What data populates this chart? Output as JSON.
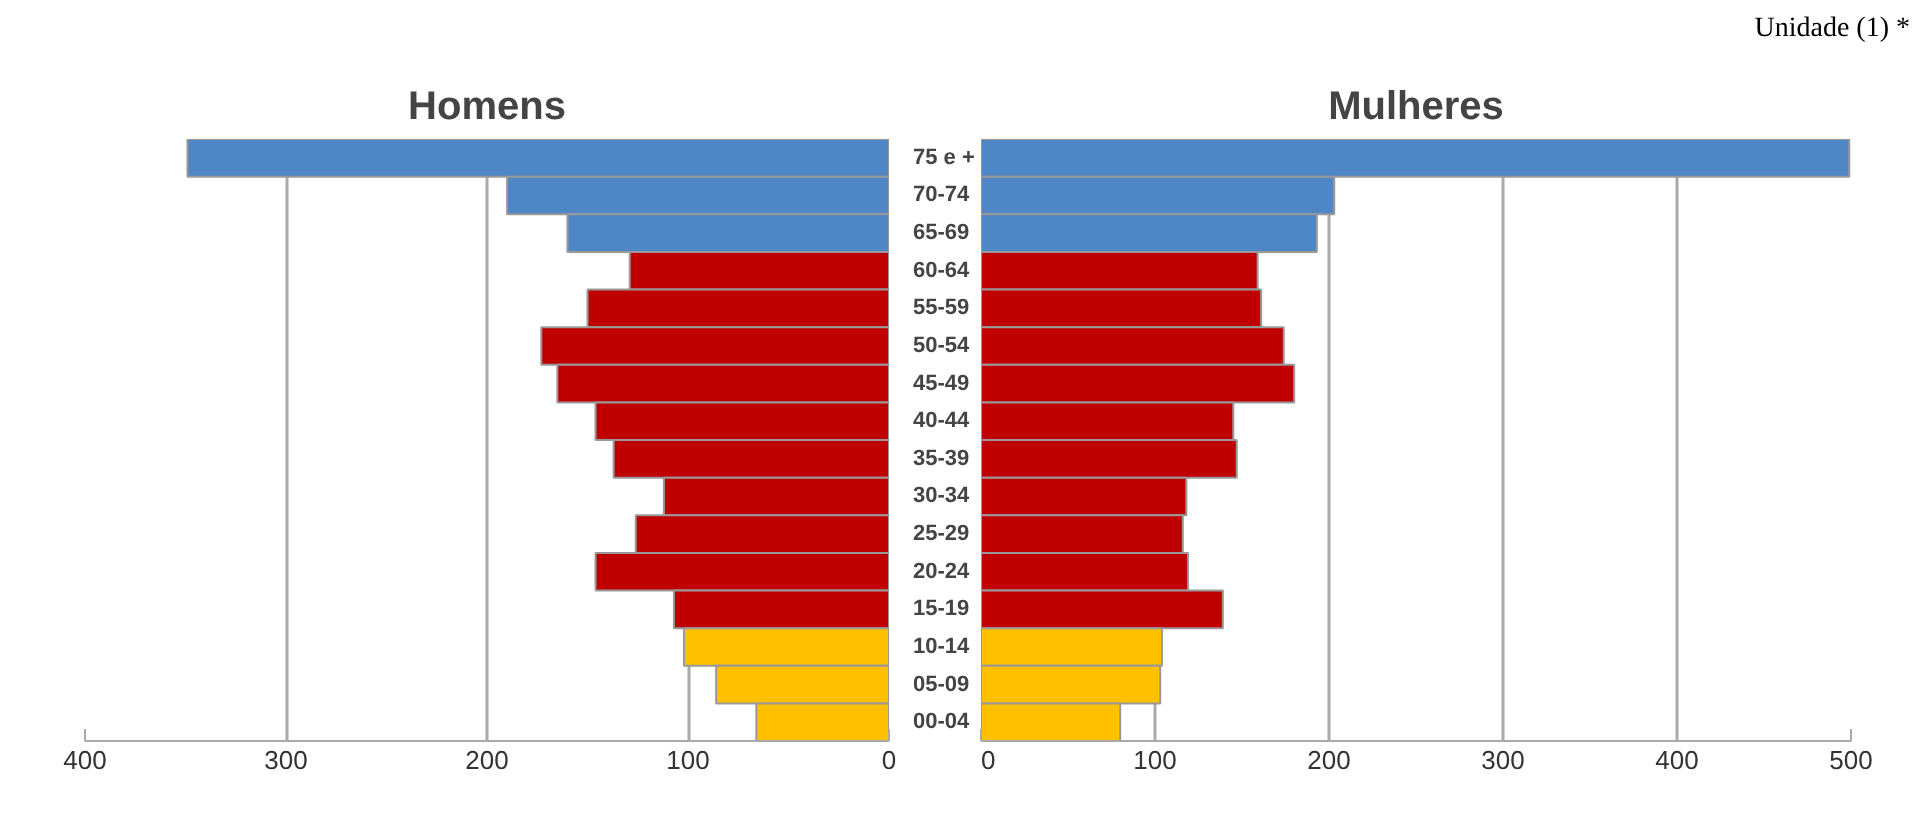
{
  "chart_data": [
    {
      "type": "bar",
      "orientation": "horizontal",
      "title": "Homens",
      "annotations": [
        "Unidade (1) *"
      ],
      "categories": [
        "75 e +",
        "70-74",
        "65-69",
        "60-64",
        "55-59",
        "50-54",
        "45-49",
        "40-44",
        "35-39",
        "30-34",
        "25-29",
        "20-24",
        "15-19",
        "10-14",
        "05-09",
        "00-04"
      ],
      "values": [
        349,
        190,
        160,
        129,
        150,
        173,
        165,
        146,
        137,
        112,
        126,
        146,
        107,
        102,
        86,
        66
      ],
      "colors": [
        "#4f86c6",
        "#4f86c6",
        "#4f86c6",
        "#c00000",
        "#c00000",
        "#c00000",
        "#c00000",
        "#c00000",
        "#c00000",
        "#c00000",
        "#c00000",
        "#c00000",
        "#c00000",
        "#ffc000",
        "#ffc000",
        "#ffc000"
      ],
      "xlim": [
        400,
        0
      ],
      "xticks": [
        400,
        300,
        200,
        100,
        0
      ],
      "grid": "x"
    },
    {
      "type": "bar",
      "orientation": "horizontal",
      "title": "Mulheres",
      "tick_labels": "x",
      "categories": [
        "75 e +",
        "70-74",
        "65-69",
        "60-64",
        "55-59",
        "50-54",
        "45-49",
        "40-44",
        "35-39",
        "30-34",
        "25-29",
        "20-24",
        "15-19",
        "10-14",
        "05-09",
        "00-04"
      ],
      "values": [
        499,
        203,
        193,
        159,
        161,
        174,
        180,
        145,
        147,
        118,
        116,
        119,
        139,
        104,
        103,
        80
      ],
      "colors": [
        "#4f86c6",
        "#4f86c6",
        "#4f86c6",
        "#c00000",
        "#c00000",
        "#c00000",
        "#c00000",
        "#c00000",
        "#c00000",
        "#c00000",
        "#c00000",
        "#c00000",
        "#c00000",
        "#ffc000",
        "#ffc000",
        "#ffc000"
      ],
      "xlim": [
        0,
        500
      ],
      "xticks": [
        0,
        100,
        200,
        300,
        400,
        500
      ],
      "grid": "x"
    }
  ]
}
